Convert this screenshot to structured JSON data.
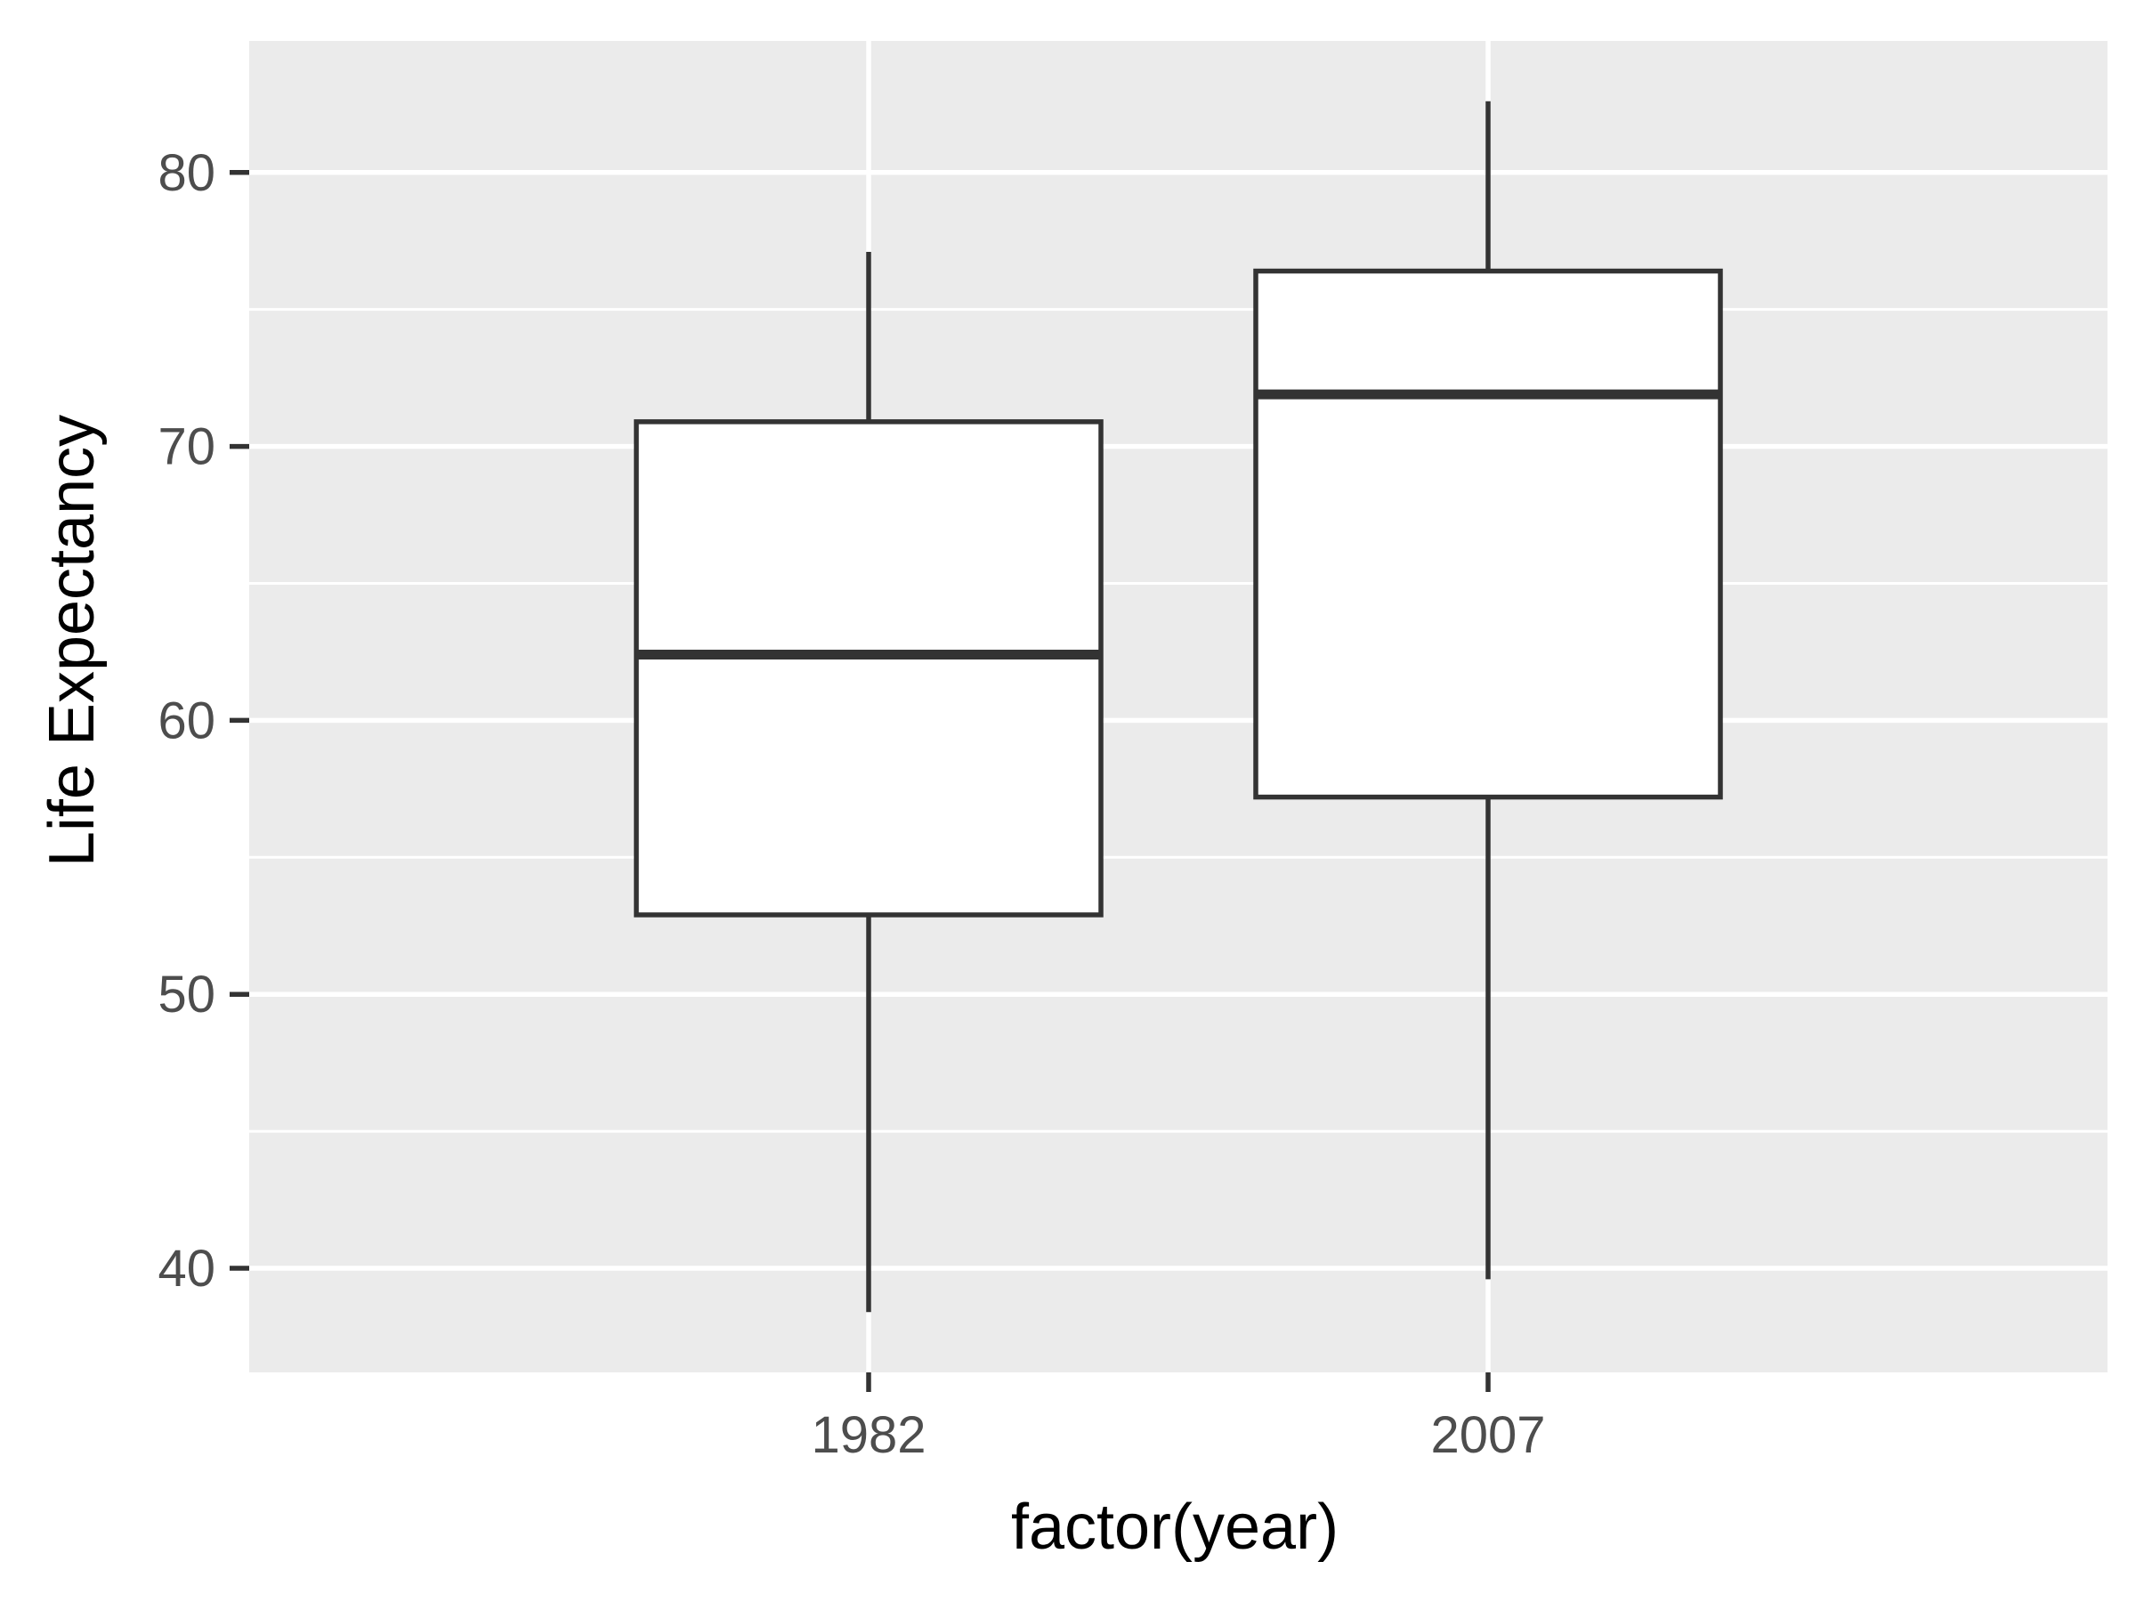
{
  "chart_data": {
    "type": "boxplot",
    "title": "",
    "xlabel": "factor(year)",
    "ylabel": "Life Expectancy",
    "categories": [
      "1982",
      "2007"
    ],
    "boxes": [
      {
        "category": "1982",
        "min": 38.4,
        "q1": 52.9,
        "median": 62.4,
        "q3": 70.9,
        "max": 77.1
      },
      {
        "category": "2007",
        "min": 39.6,
        "q1": 57.2,
        "median": 71.9,
        "q3": 76.4,
        "max": 82.6
      }
    ],
    "y_ticks": [
      40,
      50,
      60,
      70,
      80
    ],
    "y_tick_labels": [
      "40",
      "50",
      "60",
      "70",
      "80"
    ],
    "ylim": [
      36.2,
      84.8
    ],
    "grid": true,
    "colors": {
      "panel_background": "#ebebeb",
      "grid": "#ffffff",
      "box_fill": "#ffffff",
      "box_stroke": "#333333",
      "tick": "#333333"
    }
  }
}
